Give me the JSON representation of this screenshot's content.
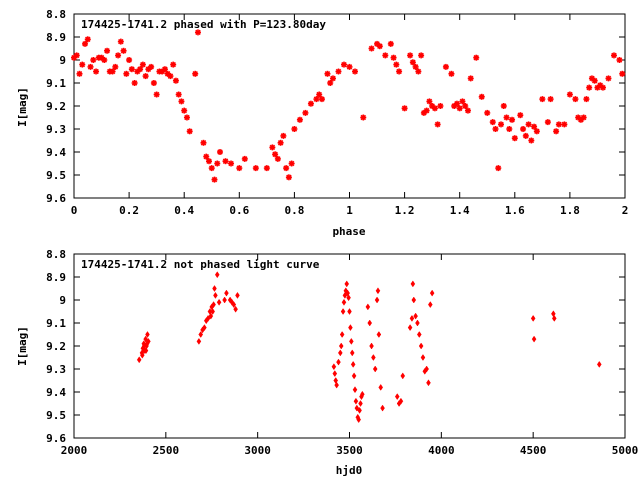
{
  "chart_data": [
    {
      "type": "scatter",
      "title": "174425-1741.2 phased with P=123.80day",
      "xlabel": "phase",
      "ylabel": "I[mag]",
      "xlim": [
        0,
        2
      ],
      "ylim": [
        9.6,
        8.8
      ],
      "y_inverted": true,
      "xticks": [
        0,
        0.2,
        0.4,
        0.6,
        0.8,
        1,
        1.2,
        1.4,
        1.6,
        1.8,
        2
      ],
      "xtick_labels": [
        "0",
        "0.2",
        "0.4",
        "0.6",
        "0.8",
        "1",
        "1.2",
        "1.4",
        "1.6",
        "1.8",
        "2"
      ],
      "yticks": [
        8.8,
        8.9,
        9,
        9.1,
        9.2,
        9.3,
        9.4,
        9.5,
        9.6
      ],
      "ytick_labels": [
        "8.8",
        "8.9",
        "9",
        "9.1",
        "9.2",
        "9.3",
        "9.4",
        "9.5",
        "9.6"
      ],
      "marker_color": "#ff0000",
      "marker": "cross",
      "grid": false,
      "points": [
        [
          0.0,
          8.99
        ],
        [
          0.01,
          8.98
        ],
        [
          0.02,
          9.06
        ],
        [
          0.03,
          9.02
        ],
        [
          0.04,
          8.93
        ],
        [
          0.05,
          8.91
        ],
        [
          0.06,
          9.03
        ],
        [
          0.07,
          9.0
        ],
        [
          0.08,
          9.05
        ],
        [
          0.09,
          8.99
        ],
        [
          0.1,
          8.99
        ],
        [
          0.11,
          9.0
        ],
        [
          0.12,
          8.96
        ],
        [
          0.13,
          9.05
        ],
        [
          0.14,
          9.05
        ],
        [
          0.15,
          9.03
        ],
        [
          0.16,
          8.98
        ],
        [
          0.17,
          8.92
        ],
        [
          0.18,
          8.96
        ],
        [
          0.19,
          9.06
        ],
        [
          0.2,
          9.0
        ],
        [
          0.21,
          9.04
        ],
        [
          0.22,
          9.1
        ],
        [
          0.23,
          9.05
        ],
        [
          0.24,
          9.04
        ],
        [
          0.25,
          9.02
        ],
        [
          0.26,
          9.07
        ],
        [
          0.27,
          9.04
        ],
        [
          0.28,
          9.03
        ],
        [
          0.29,
          9.1
        ],
        [
          0.3,
          9.15
        ],
        [
          0.31,
          9.05
        ],
        [
          0.32,
          9.05
        ],
        [
          0.33,
          9.04
        ],
        [
          0.34,
          9.06
        ],
        [
          0.35,
          9.07
        ],
        [
          0.36,
          9.02
        ],
        [
          0.37,
          9.09
        ],
        [
          0.38,
          9.15
        ],
        [
          0.39,
          9.18
        ],
        [
          0.4,
          9.22
        ],
        [
          0.41,
          9.25
        ],
        [
          0.42,
          9.31
        ],
        [
          0.44,
          9.06
        ],
        [
          0.45,
          8.88
        ],
        [
          0.47,
          9.36
        ],
        [
          0.48,
          9.42
        ],
        [
          0.49,
          9.44
        ],
        [
          0.5,
          9.47
        ],
        [
          0.51,
          9.52
        ],
        [
          0.52,
          9.45
        ],
        [
          0.53,
          9.4
        ],
        [
          0.55,
          9.44
        ],
        [
          0.57,
          9.45
        ],
        [
          0.6,
          9.47
        ],
        [
          0.62,
          9.43
        ],
        [
          0.66,
          9.47
        ],
        [
          0.7,
          9.47
        ],
        [
          0.72,
          9.38
        ],
        [
          0.73,
          9.41
        ],
        [
          0.74,
          9.43
        ],
        [
          0.75,
          9.36
        ],
        [
          0.76,
          9.33
        ],
        [
          0.77,
          9.47
        ],
        [
          0.78,
          9.51
        ],
        [
          0.79,
          9.45
        ],
        [
          0.8,
          9.3
        ],
        [
          0.82,
          9.26
        ],
        [
          0.84,
          9.23
        ],
        [
          0.86,
          9.19
        ],
        [
          0.88,
          9.17
        ],
        [
          0.89,
          9.15
        ],
        [
          0.9,
          9.17
        ],
        [
          0.92,
          9.06
        ],
        [
          0.93,
          9.1
        ],
        [
          0.94,
          9.08
        ],
        [
          0.96,
          9.05
        ],
        [
          0.98,
          9.02
        ],
        [
          1.0,
          9.03
        ],
        [
          1.02,
          9.05
        ],
        [
          1.05,
          9.25
        ],
        [
          1.08,
          8.95
        ],
        [
          1.1,
          8.93
        ],
        [
          1.11,
          8.94
        ],
        [
          1.13,
          8.98
        ],
        [
          1.15,
          8.93
        ],
        [
          1.16,
          8.99
        ],
        [
          1.17,
          9.02
        ],
        [
          1.18,
          9.05
        ],
        [
          1.2,
          9.21
        ],
        [
          1.22,
          8.98
        ],
        [
          1.23,
          9.01
        ],
        [
          1.24,
          9.03
        ],
        [
          1.25,
          9.05
        ],
        [
          1.26,
          8.98
        ],
        [
          1.27,
          9.23
        ],
        [
          1.28,
          9.22
        ],
        [
          1.29,
          9.18
        ],
        [
          1.3,
          9.2
        ],
        [
          1.31,
          9.21
        ],
        [
          1.32,
          9.28
        ],
        [
          1.33,
          9.2
        ],
        [
          1.35,
          9.03
        ],
        [
          1.37,
          9.06
        ],
        [
          1.38,
          9.2
        ],
        [
          1.39,
          9.19
        ],
        [
          1.4,
          9.21
        ],
        [
          1.41,
          9.18
        ],
        [
          1.42,
          9.2
        ],
        [
          1.43,
          9.22
        ],
        [
          1.44,
          9.08
        ],
        [
          1.46,
          8.99
        ],
        [
          1.48,
          9.16
        ],
        [
          1.5,
          9.23
        ],
        [
          1.52,
          9.27
        ],
        [
          1.53,
          9.3
        ],
        [
          1.54,
          9.47
        ],
        [
          1.55,
          9.28
        ],
        [
          1.56,
          9.2
        ],
        [
          1.57,
          9.25
        ],
        [
          1.58,
          9.3
        ],
        [
          1.59,
          9.26
        ],
        [
          1.6,
          9.34
        ],
        [
          1.62,
          9.24
        ],
        [
          1.63,
          9.3
        ],
        [
          1.64,
          9.33
        ],
        [
          1.65,
          9.28
        ],
        [
          1.66,
          9.35
        ],
        [
          1.67,
          9.29
        ],
        [
          1.68,
          9.31
        ],
        [
          1.7,
          9.17
        ],
        [
          1.72,
          9.27
        ],
        [
          1.73,
          9.17
        ],
        [
          1.75,
          9.31
        ],
        [
          1.76,
          9.28
        ],
        [
          1.78,
          9.28
        ],
        [
          1.8,
          9.15
        ],
        [
          1.82,
          9.17
        ],
        [
          1.83,
          9.25
        ],
        [
          1.84,
          9.26
        ],
        [
          1.85,
          9.25
        ],
        [
          1.86,
          9.17
        ],
        [
          1.87,
          9.12
        ],
        [
          1.88,
          9.08
        ],
        [
          1.89,
          9.09
        ],
        [
          1.9,
          9.12
        ],
        [
          1.91,
          9.11
        ],
        [
          1.92,
          9.12
        ],
        [
          1.94,
          9.08
        ],
        [
          1.96,
          8.98
        ],
        [
          1.98,
          9.0
        ],
        [
          1.99,
          9.06
        ]
      ]
    },
    {
      "type": "scatter",
      "title": "174425-1741.2 not phased light curve",
      "xlabel": "hjd0",
      "ylabel": "I[mag]",
      "xlim": [
        2000,
        5000
      ],
      "ylim": [
        9.6,
        8.8
      ],
      "y_inverted": true,
      "xticks": [
        2000,
        2500,
        3000,
        3500,
        4000,
        4500,
        5000
      ],
      "xtick_labels": [
        "2000",
        "2500",
        "3000",
        "3500",
        "4000",
        "4500",
        "5000"
      ],
      "yticks": [
        8.8,
        8.9,
        9,
        9.1,
        9.2,
        9.3,
        9.4,
        9.5,
        9.6
      ],
      "ytick_labels": [
        "8.8",
        "8.9",
        "9",
        "9.1",
        "9.2",
        "9.3",
        "9.4",
        "9.5",
        "9.6"
      ],
      "marker_color": "#ff0000",
      "marker": "diamond",
      "grid": false,
      "points": [
        [
          2355,
          9.26
        ],
        [
          2370,
          9.23
        ],
        [
          2375,
          9.21
        ],
        [
          2380,
          9.19
        ],
        [
          2385,
          9.22
        ],
        [
          2390,
          9.17
        ],
        [
          2395,
          9.2
        ],
        [
          2400,
          9.15
        ],
        [
          2405,
          9.18
        ],
        [
          2372,
          9.24
        ],
        [
          2382,
          9.2
        ],
        [
          2392,
          9.22
        ],
        [
          2398,
          9.19
        ],
        [
          2680,
          9.18
        ],
        [
          2690,
          9.15
        ],
        [
          2700,
          9.13
        ],
        [
          2710,
          9.12
        ],
        [
          2720,
          9.09
        ],
        [
          2730,
          9.08
        ],
        [
          2740,
          9.05
        ],
        [
          2745,
          9.07
        ],
        [
          2750,
          9.03
        ],
        [
          2760,
          9.02
        ],
        [
          2765,
          8.95
        ],
        [
          2770,
          8.98
        ],
        [
          2780,
          8.89
        ],
        [
          2790,
          9.01
        ],
        [
          2755,
          9.05
        ],
        [
          2820,
          9.0
        ],
        [
          2830,
          8.97
        ],
        [
          2850,
          9.0
        ],
        [
          2860,
          9.01
        ],
        [
          2870,
          9.02
        ],
        [
          2880,
          9.04
        ],
        [
          2890,
          8.98
        ],
        [
          3415,
          9.29
        ],
        [
          3420,
          9.32
        ],
        [
          3425,
          9.35
        ],
        [
          3430,
          9.37
        ],
        [
          3440,
          9.27
        ],
        [
          3450,
          9.23
        ],
        [
          3455,
          9.2
        ],
        [
          3460,
          9.15
        ],
        [
          3465,
          9.05
        ],
        [
          3470,
          9.01
        ],
        [
          3475,
          8.98
        ],
        [
          3480,
          8.96
        ],
        [
          3485,
          8.93
        ],
        [
          3490,
          8.97
        ],
        [
          3495,
          8.99
        ],
        [
          3500,
          9.05
        ],
        [
          3505,
          9.12
        ],
        [
          3510,
          9.18
        ],
        [
          3515,
          9.23
        ],
        [
          3520,
          9.28
        ],
        [
          3525,
          9.33
        ],
        [
          3530,
          9.39
        ],
        [
          3535,
          9.44
        ],
        [
          3540,
          9.47
        ],
        [
          3545,
          9.51
        ],
        [
          3550,
          9.52
        ],
        [
          3555,
          9.48
        ],
        [
          3560,
          9.45
        ],
        [
          3565,
          9.42
        ],
        [
          3570,
          9.41
        ],
        [
          3600,
          9.03
        ],
        [
          3610,
          9.1
        ],
        [
          3620,
          9.2
        ],
        [
          3630,
          9.25
        ],
        [
          3640,
          9.3
        ],
        [
          3650,
          9.0
        ],
        [
          3655,
          8.96
        ],
        [
          3660,
          9.15
        ],
        [
          3670,
          9.38
        ],
        [
          3680,
          9.47
        ],
        [
          3760,
          9.42
        ],
        [
          3770,
          9.45
        ],
        [
          3780,
          9.44
        ],
        [
          3790,
          9.33
        ],
        [
          3830,
          9.12
        ],
        [
          3840,
          9.08
        ],
        [
          3845,
          8.93
        ],
        [
          3850,
          9.0
        ],
        [
          3860,
          9.07
        ],
        [
          3870,
          9.1
        ],
        [
          3880,
          9.15
        ],
        [
          3890,
          9.2
        ],
        [
          3900,
          9.25
        ],
        [
          3910,
          9.31
        ],
        [
          3920,
          9.3
        ],
        [
          3930,
          9.36
        ],
        [
          3940,
          9.02
        ],
        [
          3950,
          8.97
        ],
        [
          4500,
          9.08
        ],
        [
          4505,
          9.17
        ],
        [
          4610,
          9.06
        ],
        [
          4615,
          9.08
        ],
        [
          4860,
          9.28
        ]
      ]
    }
  ]
}
